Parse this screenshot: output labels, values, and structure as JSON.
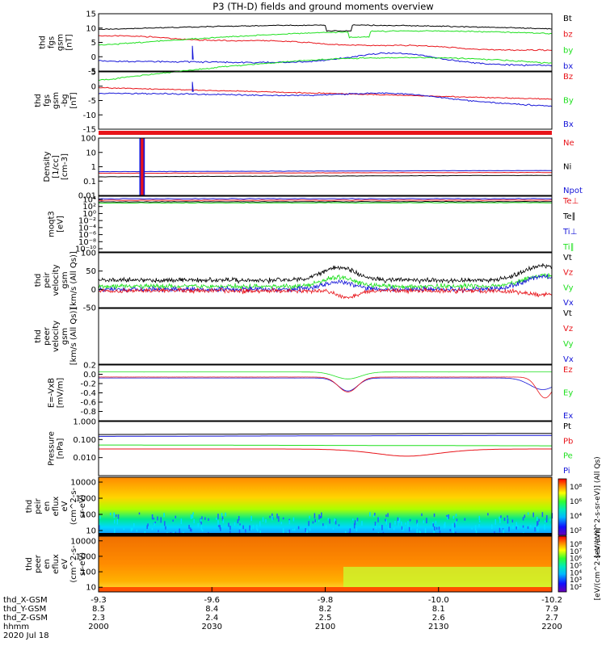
{
  "title": "P3 (TH-D) fields and ground moments overview",
  "colors": {
    "black": "#000000",
    "red": "#e8141a",
    "green": "#1fe01f",
    "blue": "#1515d8"
  },
  "chart_data": {
    "type": "line",
    "x": {
      "ticks": [
        "2000",
        "2030",
        "2100",
        "2130",
        "2200"
      ],
      "rows": [
        {
          "label": "thd_X-GSM",
          "values": [
            "-9.3",
            "-9.6",
            "-9.8",
            "-10.0",
            "-10.2"
          ]
        },
        {
          "label": "thd_Y-GSM",
          "values": [
            "8.5",
            "8.4",
            "8.2",
            "8.1",
            "7.9"
          ]
        },
        {
          "label": "thd_Z-GSM",
          "values": [
            "2.3",
            "2.4",
            "2.5",
            "2.6",
            "2.7"
          ]
        },
        {
          "label": "hhmm",
          "values": [
            "2000",
            "2030",
            "2100",
            "2130",
            "2200"
          ]
        }
      ],
      "date": "2020 Jul 18"
    },
    "panels": [
      {
        "ylabel": [
          "thd",
          "fgs",
          "gsm",
          "[nT]"
        ],
        "ylim": [
          -5,
          15
        ],
        "scale": "linear",
        "ticks": [
          "15",
          "10",
          "5",
          "0",
          "-5"
        ],
        "series": [
          {
            "name": "Bt",
            "color": "black"
          },
          {
            "name": "bz",
            "color": "red"
          },
          {
            "name": "by",
            "color": "green"
          },
          {
            "name": "bx",
            "color": "blue"
          }
        ]
      },
      {
        "ylabel": [
          "thd",
          "fgs",
          "gsm",
          "-bg",
          "[nT]"
        ],
        "ylim": [
          -15,
          5
        ],
        "scale": "linear",
        "ticks": [
          "5",
          "0",
          "-5",
          "-10",
          "-15"
        ],
        "series": [
          {
            "name": "Bz",
            "color": "red"
          },
          {
            "name": "By",
            "color": "green"
          },
          {
            "name": "Bx",
            "color": "blue"
          }
        ]
      },
      {
        "ylabel": [
          "Density",
          "[1/cc]",
          "[cm-3]"
        ],
        "ylim": [
          0.01,
          100
        ],
        "scale": "log",
        "ticks": [
          "100",
          "10",
          "1",
          "0.1",
          "0.01"
        ],
        "series": [
          {
            "name": "Ne",
            "color": "red"
          },
          {
            "name": "Ni",
            "color": "black"
          },
          {
            "name": "Npot",
            "color": "blue"
          }
        ]
      },
      {
        "ylabel": [
          "moqt3",
          "[eV]"
        ],
        "ylim": [
          1e-11,
          10000
        ],
        "scale": "log",
        "ticks": [
          "10⁴",
          "10²",
          "10⁰",
          "10⁻²",
          "10⁻⁴",
          "10⁻⁶",
          "10⁻⁸",
          "10⁻¹⁰"
        ],
        "series": [
          {
            "name": "Te⊥",
            "color": "red"
          },
          {
            "name": "Te∥",
            "color": "black"
          },
          {
            "name": "Ti⊥",
            "color": "blue"
          },
          {
            "name": "Ti∥",
            "color": "green"
          }
        ]
      },
      {
        "ylabel": [
          "thd",
          "peir",
          "velocity",
          "gsm",
          "[km/s (All Qs)]"
        ],
        "ylim": [
          -50,
          100
        ],
        "scale": "linear",
        "ticks": [
          "100",
          "50",
          "0",
          "-50"
        ],
        "series": [
          {
            "name": "Vt",
            "color": "black"
          },
          {
            "name": "Vz",
            "color": "red"
          },
          {
            "name": "Vy",
            "color": "green"
          },
          {
            "name": "Vx",
            "color": "blue"
          }
        ]
      },
      {
        "ylabel": [
          "thd",
          "peer",
          "velocity",
          "gsm",
          "[km/s (All Qs)]"
        ],
        "ylim": null,
        "scale": "linear",
        "ticks": [],
        "series": [
          {
            "name": "Vt",
            "color": "black"
          },
          {
            "name": "Vz",
            "color": "red"
          },
          {
            "name": "Vy",
            "color": "green"
          },
          {
            "name": "Vx",
            "color": "blue"
          }
        ]
      },
      {
        "ylabel": [
          "E=-VxB",
          "[mV/m]"
        ],
        "ylim": [
          -1.0,
          0.2
        ],
        "scale": "linear",
        "ticks": [
          "0.2",
          "0.0",
          "-0.2",
          "-0.4",
          "-0.6",
          "-0.8"
        ],
        "series": [
          {
            "name": "Ez",
            "color": "red"
          },
          {
            "name": "Ey",
            "color": "green"
          },
          {
            "name": "Ex",
            "color": "blue"
          }
        ]
      },
      {
        "ylabel": [
          "Pressure",
          "[nPa]"
        ],
        "ylim": [
          0.001,
          1.0
        ],
        "scale": "log",
        "ticks": [
          "1.000",
          "0.100",
          "0.010"
        ],
        "series": [
          {
            "name": "Pt",
            "color": "black"
          },
          {
            "name": "Pb",
            "color": "red"
          },
          {
            "name": "Pe",
            "color": "green"
          },
          {
            "name": "Pi",
            "color": "blue"
          }
        ]
      },
      {
        "ylabel": [
          "thd",
          "peir",
          "en",
          "eflux",
          "eV",
          "(cm^2-s-",
          "sr-eV)"
        ],
        "ylim": [
          5,
          20000
        ],
        "scale": "log",
        "ticks": [
          "10000",
          "1000",
          "100",
          "10"
        ],
        "series": []
      },
      {
        "ylabel": [
          "thd",
          "peer",
          "en",
          "eflux",
          "eV",
          "(cm^2-s-",
          "sr-eV)"
        ],
        "ylim": [
          5,
          20000
        ],
        "scale": "log",
        "ticks": [
          "10000",
          "1000",
          "100",
          "10"
        ],
        "series": []
      }
    ],
    "colorbars": [
      {
        "ticks": [
          "10⁸",
          "10⁶",
          "10⁴",
          "10²"
        ],
        "label": "[eV/(cm^2-s-sr-eV)] (All Qs)"
      },
      {
        "ticks": [
          "10⁸",
          "10⁷",
          "10⁶",
          "10⁵",
          "10⁴",
          "10³",
          "10²"
        ],
        "label": "[eV/(cm^2-s-sr-eV)]"
      }
    ],
    "grid": false
  }
}
